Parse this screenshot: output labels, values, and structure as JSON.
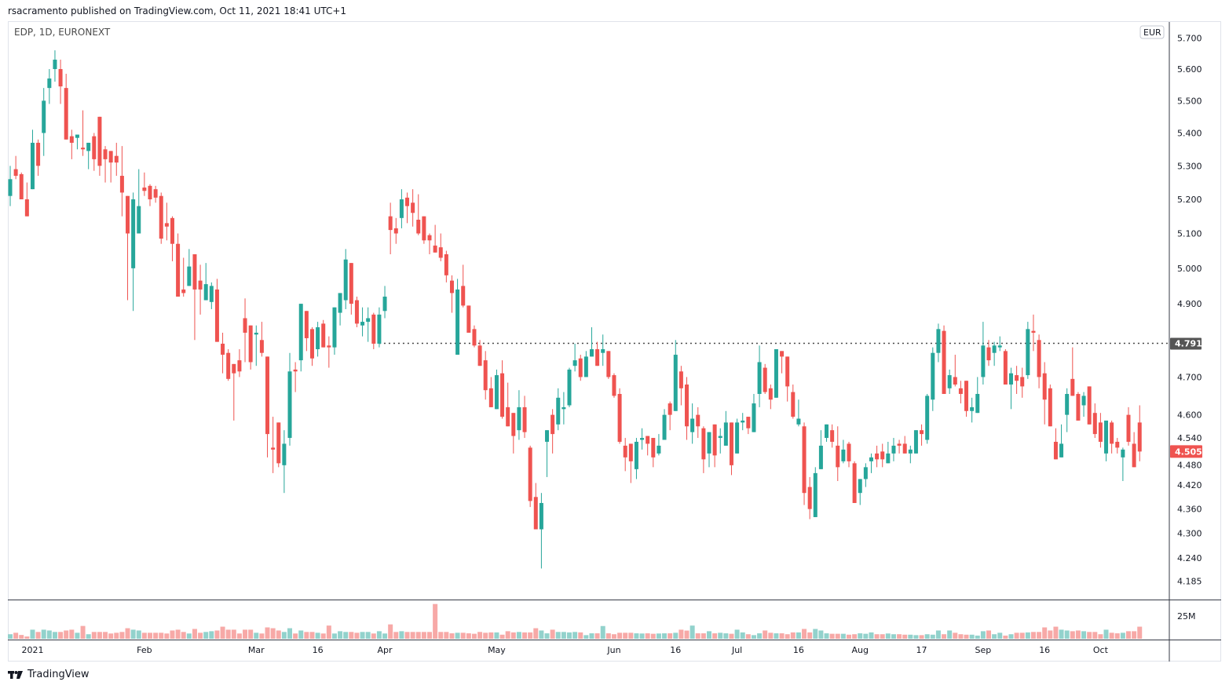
{
  "header": {
    "published": "rsacramento published on TradingView.com, Oct 11, 2021 18:41 UTC+1"
  },
  "legend": {
    "symbol": "EDP, 1D, EURONEXT"
  },
  "footer": {
    "brand": "TradingView"
  },
  "colors": {
    "up": "#26a69a",
    "down": "#ef5350",
    "vol_up": "#92d2cc",
    "vol_down": "#f7a9a7",
    "line": "#555555"
  },
  "chart_data": {
    "type": "candlestick",
    "title": "EDP, 1D, EURONEXT",
    "currency": "EUR",
    "scale": "log",
    "ylim": [
      4.16,
      5.76
    ],
    "price_ticks": [
      "5.700",
      "5.600",
      "5.500",
      "5.400",
      "5.300",
      "5.200",
      "5.100",
      "5.000",
      "4.900",
      "4.700",
      "4.600",
      "4.540",
      "4.480",
      "4.420",
      "4.360",
      "4.300",
      "4.240",
      "4.185"
    ],
    "time_ticks": [
      {
        "label": "2021",
        "index": 4
      },
      {
        "label": "Feb",
        "index": 24
      },
      {
        "label": "Mar",
        "index": 44
      },
      {
        "label": "16",
        "index": 55
      },
      {
        "label": "Apr",
        "index": 67
      },
      {
        "label": "May",
        "index": 87
      },
      {
        "label": "Jun",
        "index": 108
      },
      {
        "label": "16",
        "index": 119
      },
      {
        "label": "Jul",
        "index": 130
      },
      {
        "label": "16",
        "index": 141
      },
      {
        "label": "Aug",
        "index": 152
      },
      {
        "label": "17",
        "index": 163
      },
      {
        "label": "Sep",
        "index": 174
      },
      {
        "label": "16",
        "index": 185
      },
      {
        "label": "Oct",
        "index": 195
      }
    ],
    "volume_label": "25M",
    "volume_label_value": 25,
    "horizontal_line": {
      "price": 4.791,
      "label": "4.791",
      "start_index": 66
    },
    "last_price": {
      "price": 4.505,
      "label": "4.505"
    },
    "ohlc": [
      [
        5.21,
        5.3,
        5.18,
        5.26
      ],
      [
        5.29,
        5.33,
        5.26,
        5.27
      ],
      [
        5.275,
        5.28,
        5.2,
        5.2
      ],
      [
        5.2,
        5.25,
        5.15,
        5.15
      ],
      [
        5.23,
        5.41,
        5.23,
        5.37
      ],
      [
        5.37,
        5.38,
        5.27,
        5.3
      ],
      [
        5.4,
        5.54,
        5.33,
        5.5
      ],
      [
        5.54,
        5.6,
        5.49,
        5.57
      ],
      [
        5.6,
        5.66,
        5.56,
        5.63
      ],
      [
        5.6,
        5.63,
        5.49,
        5.545
      ],
      [
        5.54,
        5.585,
        5.38,
        5.38
      ],
      [
        5.39,
        5.41,
        5.32,
        5.37
      ],
      [
        5.385,
        5.395,
        5.35,
        5.395
      ],
      [
        5.355,
        5.47,
        5.33,
        5.35
      ],
      [
        5.345,
        5.37,
        5.29,
        5.37
      ],
      [
        5.39,
        5.4,
        5.285,
        5.32
      ],
      [
        5.45,
        5.45,
        5.27,
        5.3
      ],
      [
        5.35,
        5.36,
        5.25,
        5.32
      ],
      [
        5.345,
        5.345,
        5.25,
        5.31
      ],
      [
        5.33,
        5.37,
        5.27,
        5.31
      ],
      [
        5.27,
        5.36,
        5.15,
        5.22
      ],
      [
        5.21,
        5.21,
        4.91,
        5.1
      ],
      [
        5.0,
        5.22,
        4.88,
        5.2
      ],
      [
        5.1,
        5.29,
        5.1,
        5.18
      ],
      [
        5.235,
        5.28,
        5.21,
        5.225
      ],
      [
        5.24,
        5.245,
        5.18,
        5.2
      ],
      [
        5.23,
        5.24,
        5.19,
        5.205
      ],
      [
        5.21,
        5.22,
        5.07,
        5.085
      ],
      [
        5.13,
        5.19,
        5.08,
        5.12
      ],
      [
        5.145,
        5.15,
        5.02,
        5.07
      ],
      [
        5.07,
        5.1,
        4.92,
        4.92
      ],
      [
        4.94,
        5.03,
        4.92,
        4.93
      ],
      [
        4.95,
        5.055,
        4.95,
        5.005
      ],
      [
        5.04,
        5.04,
        4.8,
        4.94
      ],
      [
        4.965,
        5.01,
        4.87,
        4.94
      ],
      [
        4.91,
        5.015,
        4.91,
        4.955
      ],
      [
        4.905,
        4.96,
        4.885,
        4.95
      ],
      [
        4.94,
        4.97,
        4.795,
        4.795
      ],
      [
        4.79,
        4.82,
        4.71,
        4.76
      ],
      [
        4.765,
        4.775,
        4.69,
        4.695
      ],
      [
        4.735,
        4.735,
        4.585,
        4.71
      ],
      [
        4.745,
        4.775,
        4.7,
        4.715
      ],
      [
        4.86,
        4.915,
        4.74,
        4.82
      ],
      [
        4.84,
        4.84,
        4.72,
        4.74
      ],
      [
        4.815,
        4.84,
        4.73,
        4.82
      ],
      [
        4.8,
        4.85,
        4.755,
        4.765
      ],
      [
        4.755,
        4.755,
        4.49,
        4.55
      ],
      [
        4.515,
        4.595,
        4.45,
        4.51
      ],
      [
        4.58,
        4.58,
        4.465,
        4.475
      ],
      [
        4.47,
        4.56,
        4.4,
        4.525
      ],
      [
        4.54,
        4.765,
        4.52,
        4.715
      ],
      [
        4.72,
        4.74,
        4.66,
        4.715
      ],
      [
        4.745,
        4.9,
        4.715,
        4.9
      ],
      [
        4.88,
        4.88,
        4.77,
        4.805
      ],
      [
        4.83,
        4.835,
        4.73,
        4.75
      ],
      [
        4.775,
        4.85,
        4.755,
        4.835
      ],
      [
        4.845,
        4.855,
        4.78,
        4.78
      ],
      [
        4.785,
        4.81,
        4.725,
        4.78
      ],
      [
        4.78,
        4.89,
        4.76,
        4.89
      ],
      [
        4.875,
        4.93,
        4.84,
        4.93
      ],
      [
        4.91,
        5.055,
        4.885,
        5.025
      ],
      [
        5.015,
        5.015,
        4.87,
        4.9
      ],
      [
        4.91,
        4.92,
        4.835,
        4.845
      ],
      [
        4.84,
        4.89,
        4.81,
        4.85
      ],
      [
        4.85,
        4.89,
        4.795,
        4.86
      ],
      [
        4.87,
        4.875,
        4.775,
        4.79
      ],
      [
        4.79,
        4.89,
        4.78,
        4.87
      ],
      [
        4.88,
        4.95,
        4.86,
        4.92
      ],
      [
        5.15,
        5.19,
        5.04,
        5.11
      ],
      [
        5.115,
        5.145,
        5.07,
        5.1
      ],
      [
        5.145,
        5.23,
        5.115,
        5.2
      ],
      [
        5.205,
        5.22,
        5.13,
        5.18
      ],
      [
        5.19,
        5.23,
        5.12,
        5.16
      ],
      [
        5.14,
        5.215,
        5.095,
        5.1
      ],
      [
        5.15,
        5.15,
        5.07,
        5.08
      ],
      [
        5.095,
        5.1,
        5.04,
        5.08
      ],
      [
        5.065,
        5.125,
        5.045,
        5.045
      ],
      [
        5.06,
        5.1,
        5.02,
        5.03
      ],
      [
        5.04,
        5.05,
        4.96,
        4.98
      ],
      [
        4.965,
        4.98,
        4.875,
        4.93
      ],
      [
        4.76,
        4.97,
        4.76,
        4.94
      ],
      [
        4.95,
        5.01,
        4.89,
        4.895
      ],
      [
        4.895,
        4.895,
        4.82,
        4.82
      ],
      [
        4.83,
        4.84,
        4.78,
        4.785
      ],
      [
        4.785,
        4.8,
        4.73,
        4.73
      ],
      [
        4.745,
        4.77,
        4.64,
        4.665
      ],
      [
        4.67,
        4.7,
        4.62,
        4.62
      ],
      [
        4.615,
        4.72,
        4.615,
        4.705
      ],
      [
        4.71,
        4.745,
        4.59,
        4.595
      ],
      [
        4.62,
        4.685,
        4.57,
        4.57
      ],
      [
        4.605,
        4.605,
        4.5,
        4.545
      ],
      [
        4.56,
        4.665,
        4.535,
        4.62
      ],
      [
        4.62,
        4.65,
        4.54,
        4.555
      ],
      [
        4.515,
        4.52,
        4.365,
        4.38
      ],
      [
        4.39,
        4.425,
        4.31,
        4.31
      ],
      [
        4.31,
        4.4,
        4.215,
        4.375
      ],
      [
        4.53,
        4.56,
        4.44,
        4.56
      ],
      [
        4.6,
        4.615,
        4.5,
        4.55
      ],
      [
        4.575,
        4.67,
        4.56,
        4.645
      ],
      [
        4.615,
        4.66,
        4.575,
        4.62
      ],
      [
        4.625,
        4.725,
        4.62,
        4.72
      ],
      [
        4.73,
        4.79,
        4.715,
        4.745
      ],
      [
        4.75,
        4.76,
        4.69,
        4.7
      ],
      [
        4.7,
        4.77,
        4.7,
        4.755
      ],
      [
        4.755,
        4.835,
        4.755,
        4.775
      ],
      [
        4.775,
        4.795,
        4.73,
        4.73
      ],
      [
        4.765,
        4.815,
        4.73,
        4.775
      ],
      [
        4.77,
        4.77,
        4.695,
        4.7
      ],
      [
        4.705,
        4.71,
        4.645,
        4.65
      ],
      [
        4.655,
        4.67,
        4.525,
        4.53
      ],
      [
        4.52,
        4.54,
        4.455,
        4.49
      ],
      [
        4.525,
        4.525,
        4.425,
        4.48
      ],
      [
        4.46,
        4.54,
        4.435,
        4.53
      ],
      [
        4.535,
        4.565,
        4.51,
        4.54
      ],
      [
        4.545,
        4.545,
        4.495,
        4.525
      ],
      [
        4.54,
        4.54,
        4.465,
        4.49
      ],
      [
        4.5,
        4.55,
        4.495,
        4.52
      ],
      [
        4.535,
        4.615,
        4.535,
        4.6
      ],
      [
        4.63,
        4.635,
        4.56,
        4.6
      ],
      [
        4.61,
        4.8,
        4.61,
        4.76
      ],
      [
        4.715,
        4.73,
        4.625,
        4.67
      ],
      [
        4.68,
        4.7,
        4.535,
        4.57
      ],
      [
        4.555,
        4.63,
        4.525,
        4.59
      ],
      [
        4.6,
        4.62,
        4.54,
        4.57
      ],
      [
        4.565,
        4.57,
        4.45,
        4.485
      ],
      [
        4.5,
        4.555,
        4.465,
        4.555
      ],
      [
        4.575,
        4.575,
        4.465,
        4.495
      ],
      [
        4.54,
        4.565,
        4.5,
        4.545
      ],
      [
        4.52,
        4.61,
        4.52,
        4.58
      ],
      [
        4.58,
        4.58,
        4.445,
        4.47
      ],
      [
        4.5,
        4.59,
        4.5,
        4.58
      ],
      [
        4.58,
        4.605,
        4.56,
        4.585
      ],
      [
        4.595,
        4.595,
        4.55,
        4.565
      ],
      [
        4.555,
        4.655,
        4.555,
        4.63
      ],
      [
        4.655,
        4.785,
        4.62,
        4.74
      ],
      [
        4.725,
        4.735,
        4.655,
        4.66
      ],
      [
        4.67,
        4.68,
        4.615,
        4.64
      ],
      [
        4.645,
        4.775,
        4.645,
        4.775
      ],
      [
        4.77,
        4.77,
        4.71,
        4.755
      ],
      [
        4.755,
        4.755,
        4.635,
        4.675
      ],
      [
        4.66,
        4.68,
        4.59,
        4.595
      ],
      [
        4.575,
        4.64,
        4.57,
        4.59
      ],
      [
        4.57,
        4.58,
        4.37,
        4.4
      ],
      [
        4.415,
        4.44,
        4.335,
        4.36
      ],
      [
        4.34,
        4.465,
        4.34,
        4.45
      ],
      [
        4.46,
        4.56,
        4.46,
        4.52
      ],
      [
        4.54,
        4.575,
        4.53,
        4.575
      ],
      [
        4.56,
        4.575,
        4.515,
        4.53
      ],
      [
        4.52,
        4.57,
        4.43,
        4.465
      ],
      [
        4.48,
        4.535,
        4.475,
        4.51
      ],
      [
        4.525,
        4.53,
        4.465,
        4.48
      ],
      [
        4.475,
        4.48,
        4.375,
        4.375
      ],
      [
        4.4,
        4.435,
        4.37,
        4.435
      ],
      [
        4.435,
        4.475,
        4.415,
        4.465
      ],
      [
        4.48,
        4.5,
        4.45,
        4.49
      ],
      [
        4.5,
        4.52,
        4.465,
        4.485
      ],
      [
        4.505,
        4.525,
        4.465,
        4.485
      ],
      [
        4.475,
        4.53,
        4.475,
        4.5
      ],
      [
        4.5,
        4.54,
        4.48,
        4.52
      ],
      [
        4.525,
        4.535,
        4.5,
        4.52
      ],
      [
        4.525,
        4.545,
        4.5,
        4.5
      ],
      [
        4.5,
        4.52,
        4.475,
        4.51
      ],
      [
        4.5,
        4.56,
        4.5,
        4.56
      ],
      [
        4.56,
        4.575,
        4.52,
        4.55
      ],
      [
        4.535,
        4.655,
        4.525,
        4.65
      ],
      [
        4.64,
        4.78,
        4.61,
        4.765
      ],
      [
        4.765,
        4.845,
        4.74,
        4.83
      ],
      [
        4.825,
        4.84,
        4.655,
        4.655
      ],
      [
        4.67,
        4.72,
        4.655,
        4.705
      ],
      [
        4.7,
        4.76,
        4.675,
        4.68
      ],
      [
        4.67,
        4.69,
        4.63,
        4.655
      ],
      [
        4.69,
        4.69,
        4.595,
        4.61
      ],
      [
        4.61,
        4.645,
        4.58,
        4.62
      ],
      [
        4.605,
        4.7,
        4.605,
        4.655
      ],
      [
        4.7,
        4.85,
        4.68,
        4.785
      ],
      [
        4.78,
        4.8,
        4.73,
        4.745
      ],
      [
        4.765,
        4.795,
        4.73,
        4.785
      ],
      [
        4.78,
        4.81,
        4.77,
        4.785
      ],
      [
        4.77,
        4.775,
        4.68,
        4.68
      ],
      [
        4.68,
        4.725,
        4.615,
        4.71
      ],
      [
        4.705,
        4.73,
        4.655,
        4.69
      ],
      [
        4.7,
        4.725,
        4.645,
        4.675
      ],
      [
        4.705,
        4.85,
        4.695,
        4.83
      ],
      [
        4.825,
        4.87,
        4.77,
        4.82
      ],
      [
        4.8,
        4.815,
        4.67,
        4.7
      ],
      [
        4.71,
        4.74,
        4.575,
        4.64
      ],
      [
        4.67,
        4.68,
        4.57,
        4.57
      ],
      [
        4.53,
        4.565,
        4.485,
        4.485
      ],
      [
        4.49,
        4.575,
        4.49,
        4.525
      ],
      [
        4.6,
        4.67,
        4.555,
        4.655
      ],
      [
        4.695,
        4.78,
        4.65,
        4.65
      ],
      [
        4.655,
        4.66,
        4.585,
        4.585
      ],
      [
        4.625,
        4.66,
        4.595,
        4.65
      ],
      [
        4.675,
        4.675,
        4.575,
        4.575
      ],
      [
        4.605,
        4.63,
        4.54,
        4.55
      ],
      [
        4.58,
        4.605,
        4.515,
        4.53
      ],
      [
        4.5,
        4.585,
        4.48,
        4.585
      ],
      [
        4.58,
        4.585,
        4.5,
        4.525
      ],
      [
        4.53,
        4.54,
        4.5,
        4.515
      ],
      [
        4.49,
        4.515,
        4.43,
        4.51
      ],
      [
        4.6,
        4.62,
        4.52,
        4.53
      ],
      [
        4.525,
        4.555,
        4.465,
        4.465
      ],
      [
        4.58,
        4.625,
        4.48,
        4.505
      ]
    ],
    "volume_millions": [
      5.0,
      6.6,
      4.2,
      2.5,
      10,
      7.5,
      10,
      9.1,
      7.5,
      7.5,
      9.1,
      10,
      6.6,
      14.1,
      5,
      7.5,
      7.5,
      7.5,
      5.8,
      6.6,
      7.5,
      11.6,
      10,
      9.1,
      6.6,
      6.6,
      6.6,
      6.6,
      5.8,
      9.1,
      10,
      7.5,
      5.8,
      10.8,
      6.6,
      7.5,
      8.3,
      9.1,
      13.3,
      10,
      10,
      5.8,
      10,
      10,
      6.6,
      5.8,
      12.5,
      11.6,
      9.1,
      7.5,
      11.6,
      5.8,
      9.1,
      7.5,
      7.5,
      6.6,
      5.8,
      14.5,
      5.8,
      8.3,
      7.5,
      7.5,
      6.6,
      7.5,
      7.5,
      5.8,
      8.3,
      5.8,
      15.8,
      7.5,
      8.3,
      7.5,
      7.5,
      7.5,
      7.5,
      7.5,
      38.2,
      7.5,
      7.5,
      6,
      6.6,
      6.6,
      6,
      5.5,
      7.5,
      6.6,
      7,
      7,
      4.5,
      8.3,
      7,
      7.5,
      7,
      7,
      11.6,
      9.1,
      6,
      10,
      7.5,
      7.5,
      7,
      7.5,
      7,
      4,
      6,
      6,
      14,
      6,
      5,
      6.6,
      6.6,
      6.6,
      6,
      5.8,
      6,
      5.5,
      5.8,
      6,
      6,
      6.6,
      10,
      9,
      14.5,
      6,
      6,
      8.3,
      6,
      6.6,
      6,
      5.5,
      10,
      7,
      5,
      4,
      6,
      9.1,
      6.6,
      6,
      6,
      5,
      7,
      7,
      10.8,
      7,
      10.8,
      9.1,
      6,
      5.5,
      5.5,
      5.5,
      4.5,
      5,
      6,
      5.5,
      7,
      5,
      5,
      5.8,
      5,
      5,
      4.5,
      4.5,
      4,
      4,
      5,
      4.5,
      9.1,
      5,
      9.1,
      6.6,
      5,
      4.5,
      4.5,
      3.5,
      8.3,
      9.1,
      5,
      6.6,
      3.5,
      5,
      6.6,
      6.6,
      7,
      7.5,
      7.5,
      12.5,
      9.1,
      13.3,
      10,
      9.1,
      8.3,
      9.1,
      8.3,
      7.5,
      7.5,
      5,
      10,
      6.6,
      6,
      6.6,
      8.3,
      8.3,
      13.3
    ]
  }
}
